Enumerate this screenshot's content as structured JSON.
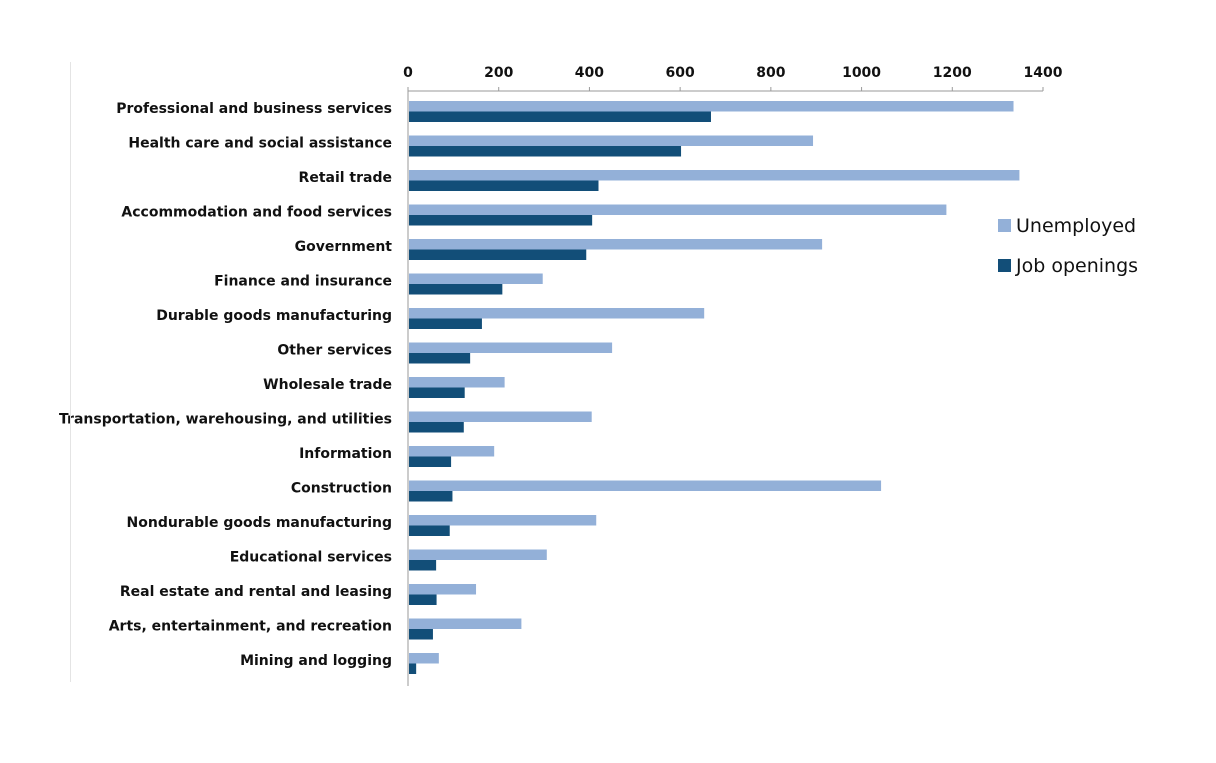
{
  "chart_data": {
    "type": "bar",
    "orientation": "horizontal",
    "categories": [
      "Professional and business services",
      "Health care and social assistance",
      "Retail trade",
      "Accommodation and food services",
      "Government",
      "Finance and insurance",
      "Durable goods manufacturing",
      "Other services",
      "Wholesale trade",
      "Transportation, warehousing, and utilities",
      "Information",
      "Construction",
      "Nondurable goods manufacturing",
      "Educational services",
      "Real estate and rental and leasing",
      "Arts, entertainment, and recreation",
      "Mining and logging"
    ],
    "series": [
      {
        "name": "Unemployed",
        "color": "#93b0d8",
        "values": [
          1335,
          893,
          1348,
          1187,
          913,
          297,
          653,
          450,
          213,
          405,
          190,
          1043,
          415,
          306,
          150,
          250,
          68
        ]
      },
      {
        "name": "Job openings",
        "color": "#124e78",
        "values": [
          668,
          602,
          420,
          406,
          393,
          208,
          163,
          137,
          125,
          123,
          95,
          98,
          92,
          62,
          63,
          55,
          18
        ]
      }
    ],
    "xticks": [
      "0",
      "200",
      "400",
      "600",
      "800",
      "1000",
      "1200",
      "1400"
    ],
    "xlim": [
      0,
      1400
    ],
    "axis_position": "top",
    "grid": false,
    "legend_position": "right"
  }
}
